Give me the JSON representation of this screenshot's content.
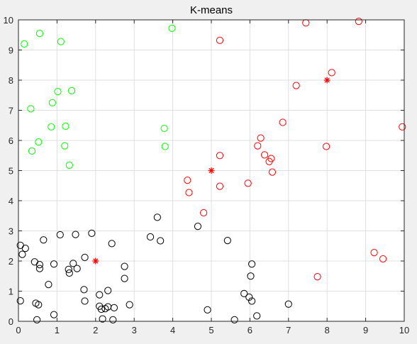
{
  "chart_data": {
    "type": "scatter",
    "title": "K-means",
    "xlabel": "",
    "ylabel": "",
    "xlim": [
      0,
      10
    ],
    "ylim": [
      0,
      10
    ],
    "xticks": [
      0,
      1,
      2,
      3,
      4,
      5,
      6,
      7,
      8,
      9,
      10
    ],
    "yticks": [
      0,
      1,
      2,
      3,
      4,
      5,
      6,
      7,
      8,
      9,
      10
    ],
    "grid": true,
    "marker": "circle-open",
    "centroid_marker": "asterisk",
    "series": [
      {
        "color": "#00ff00",
        "points": [
          [
            0.15,
            9.2
          ],
          [
            0.55,
            9.55
          ],
          [
            1.1,
            9.28
          ],
          [
            3.98,
            9.72
          ],
          [
            1.02,
            7.62
          ],
          [
            1.38,
            7.65
          ],
          [
            0.32,
            7.05
          ],
          [
            0.88,
            7.25
          ],
          [
            0.85,
            6.45
          ],
          [
            1.22,
            6.47
          ],
          [
            3.78,
            6.4
          ],
          [
            0.52,
            5.95
          ],
          [
            0.35,
            5.65
          ],
          [
            1.2,
            5.82
          ],
          [
            3.8,
            5.8
          ],
          [
            1.32,
            5.18
          ]
        ],
        "centroid": null
      },
      {
        "color": "#ff0000",
        "points": [
          [
            7.45,
            9.9
          ],
          [
            8.82,
            9.95
          ],
          [
            5.22,
            9.32
          ],
          [
            8.12,
            8.25
          ],
          [
            7.2,
            7.82
          ],
          [
            6.85,
            6.6
          ],
          [
            9.95,
            6.45
          ],
          [
            6.28,
            6.08
          ],
          [
            6.2,
            5.82
          ],
          [
            7.98,
            5.8
          ],
          [
            5.22,
            5.5
          ],
          [
            6.38,
            5.52
          ],
          [
            6.55,
            5.4
          ],
          [
            6.5,
            5.3
          ],
          [
            6.58,
            4.95
          ],
          [
            4.38,
            4.68
          ],
          [
            5.22,
            4.48
          ],
          [
            5.95,
            4.58
          ],
          [
            4.42,
            4.27
          ],
          [
            4.8,
            3.6
          ],
          [
            9.22,
            2.28
          ],
          [
            9.45,
            2.07
          ],
          [
            7.75,
            1.48
          ]
        ],
        "centroid": [
          5.0,
          5.0
        ],
        "extra_centroids": [
          [
            8.0,
            8.0
          ]
        ]
      },
      {
        "color": "#000000",
        "points": [
          [
            0.05,
            2.52
          ],
          [
            0.18,
            2.42
          ],
          [
            0.1,
            2.22
          ],
          [
            0.65,
            2.7
          ],
          [
            1.08,
            2.87
          ],
          [
            1.48,
            2.88
          ],
          [
            1.9,
            2.92
          ],
          [
            2.42,
            2.58
          ],
          [
            0.42,
            1.97
          ],
          [
            0.55,
            1.88
          ],
          [
            0.55,
            1.75
          ],
          [
            0.92,
            1.9
          ],
          [
            1.3,
            1.72
          ],
          [
            1.32,
            1.6
          ],
          [
            1.42,
            1.92
          ],
          [
            1.52,
            1.75
          ],
          [
            1.72,
            2.12
          ],
          [
            2.75,
            1.82
          ],
          [
            2.75,
            1.42
          ],
          [
            0.78,
            1.22
          ],
          [
            1.7,
            1.05
          ],
          [
            2.32,
            1.02
          ],
          [
            2.1,
            0.88
          ],
          [
            1.72,
            0.67
          ],
          [
            0.05,
            0.68
          ],
          [
            0.45,
            0.6
          ],
          [
            0.52,
            0.55
          ],
          [
            2.1,
            0.5
          ],
          [
            2.25,
            0.42
          ],
          [
            2.15,
            0.4
          ],
          [
            2.32,
            0.48
          ],
          [
            2.48,
            0.45
          ],
          [
            2.88,
            0.55
          ],
          [
            0.92,
            0.22
          ],
          [
            0.48,
            0.05
          ],
          [
            2.18,
            0.08
          ],
          [
            2.45,
            0.05
          ],
          [
            3.6,
            3.45
          ],
          [
            3.42,
            2.8
          ],
          [
            3.68,
            2.67
          ],
          [
            4.65,
            3.15
          ],
          [
            5.42,
            2.68
          ],
          [
            6.05,
            1.9
          ],
          [
            6.02,
            1.5
          ],
          [
            5.85,
            0.92
          ],
          [
            5.98,
            0.8
          ],
          [
            6.05,
            0.67
          ],
          [
            4.9,
            0.38
          ],
          [
            6.18,
            0.18
          ],
          [
            5.6,
            0.05
          ],
          [
            7.0,
            0.57
          ]
        ],
        "centroid": [
          2.0,
          2.0
        ]
      }
    ]
  }
}
